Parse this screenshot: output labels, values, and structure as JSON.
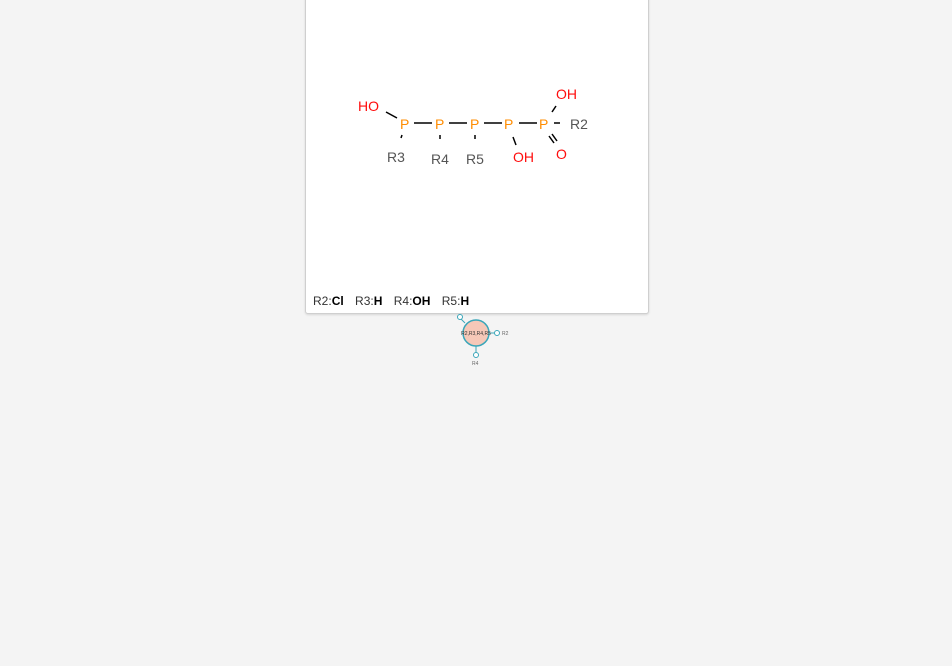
{
  "molecule": {
    "atoms": {
      "ho_left": "HO",
      "p1": "P",
      "p2": "P",
      "p3": "P",
      "p4": "P",
      "p5": "P",
      "oh_top": "OH",
      "oh_bottom": "OH",
      "o_double": "O",
      "r2": "R2",
      "r3": "R3",
      "r4": "R4",
      "r5": "R5"
    }
  },
  "legend": [
    {
      "key": "R2:",
      "value": "Cl"
    },
    {
      "key": "R3:",
      "value": "H"
    },
    {
      "key": "R4:",
      "value": "OH"
    },
    {
      "key": "R5:",
      "value": "H"
    }
  ],
  "node": {
    "label": "R2,R3,R4,R5",
    "right_label": "R2",
    "bottom_label": "R4"
  },
  "colors": {
    "phosphorus": "#ff8c00",
    "oxygen": "#ff0d0d",
    "rgroup": "#555555",
    "node_fill": "#f6c8b8",
    "node_stroke": "#3aa6b9"
  }
}
